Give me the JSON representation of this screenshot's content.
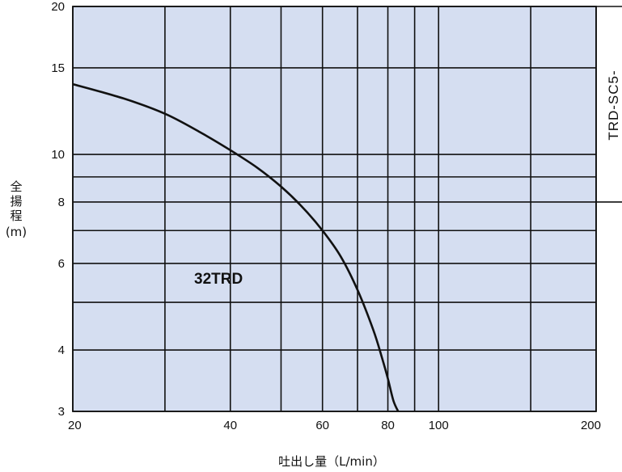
{
  "chart_data": {
    "type": "line",
    "xlabel": "吐出し量（L/min）",
    "ylabel": "全揚程（m）",
    "xscale": "log",
    "yscale": "log",
    "xlim": [
      20,
      200
    ],
    "ylim": [
      3,
      20
    ],
    "x_ticks": [
      {
        "value": 20,
        "label": "20"
      },
      {
        "value": 40,
        "label": "40"
      },
      {
        "value": 60,
        "label": "60"
      },
      {
        "value": 80,
        "label": "80"
      },
      {
        "value": 100,
        "label": "100"
      },
      {
        "value": 200,
        "label": "200"
      }
    ],
    "y_ticks": [
      {
        "value": 3,
        "label": "3"
      },
      {
        "value": 4,
        "label": "4"
      },
      {
        "value": 6,
        "label": "6"
      },
      {
        "value": 8,
        "label": "8"
      },
      {
        "value": 10,
        "label": "10"
      },
      {
        "value": 15,
        "label": "15"
      },
      {
        "value": 20,
        "label": "20"
      }
    ],
    "x_gridlines": [
      20,
      30,
      40,
      50,
      60,
      70,
      80,
      90,
      100,
      150,
      200
    ],
    "y_gridlines": [
      3,
      4,
      5,
      6,
      7,
      8,
      9,
      10,
      15,
      20
    ],
    "grid": true,
    "series": [
      {
        "name": "32TRD",
        "color": "#111111",
        "x": [
          20,
          25,
          30,
          35,
          40,
          45,
          50,
          55,
          60,
          65,
          70,
          75,
          78,
          80,
          82,
          84
        ],
        "y": [
          13.9,
          13.0,
          12.1,
          11.1,
          10.2,
          9.4,
          8.6,
          7.8,
          7.0,
          6.2,
          5.3,
          4.4,
          3.85,
          3.5,
          3.15,
          2.98
        ]
      }
    ],
    "annotations": [
      {
        "text": "32TRD",
        "x": 35,
        "y": 6.0
      },
      {
        "text": "TRD-SC5-",
        "orientation": "vertical",
        "position": "right"
      }
    ]
  },
  "colors": {
    "plot_background": "#d5def1",
    "grid": "#111111",
    "curve": "#111111"
  }
}
